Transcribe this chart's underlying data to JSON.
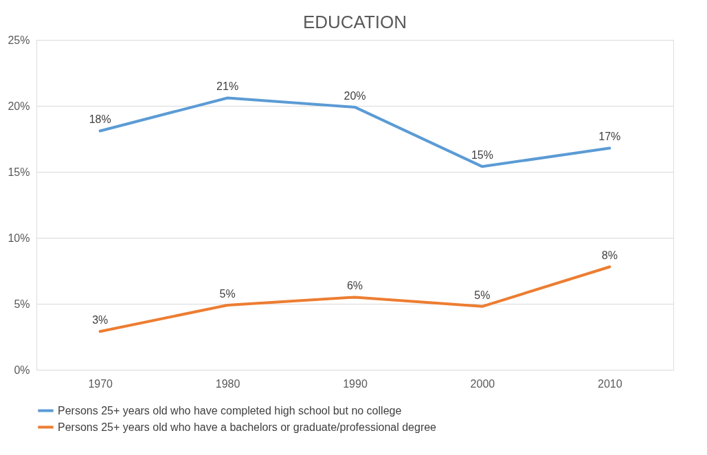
{
  "chart_data": {
    "type": "line",
    "title": "EDUCATION",
    "categories": [
      "1970",
      "1980",
      "1990",
      "2000",
      "2010"
    ],
    "series": [
      {
        "name": "Persons 25+ years old who have completed high school but no college",
        "color": "#5b9bd5",
        "values": [
          18.1,
          20.6,
          19.9,
          15.4,
          16.8
        ],
        "value_labels": [
          "18%",
          "21%",
          "20%",
          "15%",
          "17%"
        ]
      },
      {
        "name": "Persons 25+ years old who have a bachelors or graduate/professional degree",
        "color": "#ed7d31",
        "values": [
          2.9,
          4.9,
          5.5,
          4.8,
          7.8
        ],
        "value_labels": [
          "3%",
          "5%",
          "6%",
          "5%",
          "8%"
        ]
      }
    ],
    "ylim": [
      0,
      25
    ],
    "yticks": [
      {
        "value": 0,
        "label": "0%"
      },
      {
        "value": 5,
        "label": "5%"
      },
      {
        "value": 10,
        "label": "10%"
      },
      {
        "value": 15,
        "label": "15%"
      },
      {
        "value": 20,
        "label": "20%"
      },
      {
        "value": 25,
        "label": "25%"
      }
    ],
    "grid": "y",
    "legend": "bottom",
    "marker": "none",
    "line_style": "solid"
  }
}
